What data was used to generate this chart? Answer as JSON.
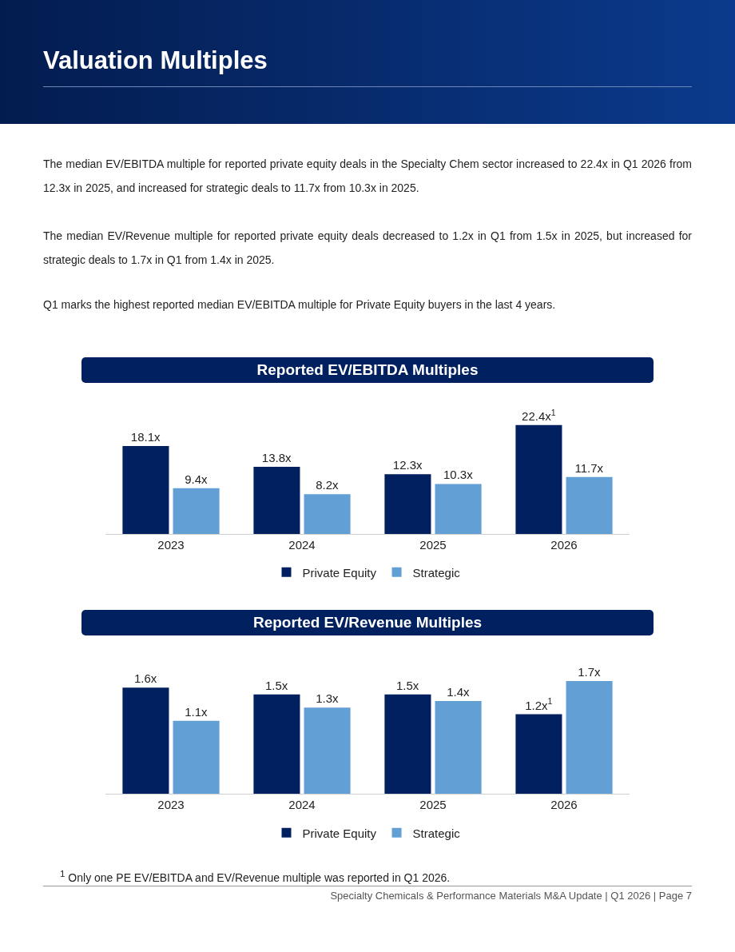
{
  "chart_data": [
    {
      "type": "other",
      "title": "Valuation Multiples",
      "annotations": [
        "The median EV/EBITDA multiple for reported private equity deals in the Specialty Chem sector increased to 22.4x in Q1 2026 from 12.3x in 2025, and increased for strategic deals to 11.7x from 10.3x in 2025.",
        "The median EV/Revenue multiple for reported private equity deals decreased to 1.2x in Q1 from 1.5x in 2025, but increased for strategic deals to 1.7x in Q1 from 1.4x in 2025.",
        "Q1 marks the highest reported median EV/EBITDA multiple for Private Equity buyers in the last 4 years."
      ]
    },
    {
      "type": "bar",
      "title": "Reported EV/EBITDA Multiples",
      "categories": [
        "2023",
        "2024",
        "2025",
        "2026"
      ],
      "legend": "bottom",
      "grid": false,
      "tick_labels": "x",
      "series": [
        {
          "name": "Private Equity",
          "color": "#002060",
          "values": [
            18.1,
            13.8,
            12.3,
            22.4
          ],
          "value_labels": [
            "18.1x",
            "13.8x",
            "12.3x",
            "22.4x$^{1}$"
          ]
        },
        {
          "name": "Strategic",
          "color": "#629fd4",
          "values": [
            9.4,
            8.2,
            10.3,
            11.7
          ],
          "value_labels": [
            "9.4x",
            "8.2x",
            "10.3x",
            "11.7x"
          ]
        }
      ]
    },
    {
      "type": "bar",
      "title": "Reported EV/Revenue Multiples",
      "categories": [
        "2023",
        "2024",
        "2025",
        "2026"
      ],
      "legend": "bottom",
      "grid": false,
      "tick_labels": "x",
      "series": [
        {
          "name": "Private Equity",
          "color": "#002060",
          "values": [
            1.6,
            1.5,
            1.5,
            1.2
          ],
          "value_labels": [
            "1.6x",
            "1.5x",
            "1.5x",
            "1.2x$^{1}$"
          ]
        },
        {
          "name": "Strategic",
          "color": "#629fd4",
          "values": [
            1.1,
            1.3,
            1.4,
            1.7
          ],
          "value_labels": [
            "1.1x",
            "1.3x",
            "1.4x",
            "1.7x"
          ]
        }
      ],
      "annotations": [
        "$^{1}$  Only one PE EV/EBITDA and EV/Revenue multiple was reported in Q1 2026.",
        "Specialty Chemicals & Performance Materials M&A Update | Q1 2026 | Page 7"
      ]
    }
  ]
}
